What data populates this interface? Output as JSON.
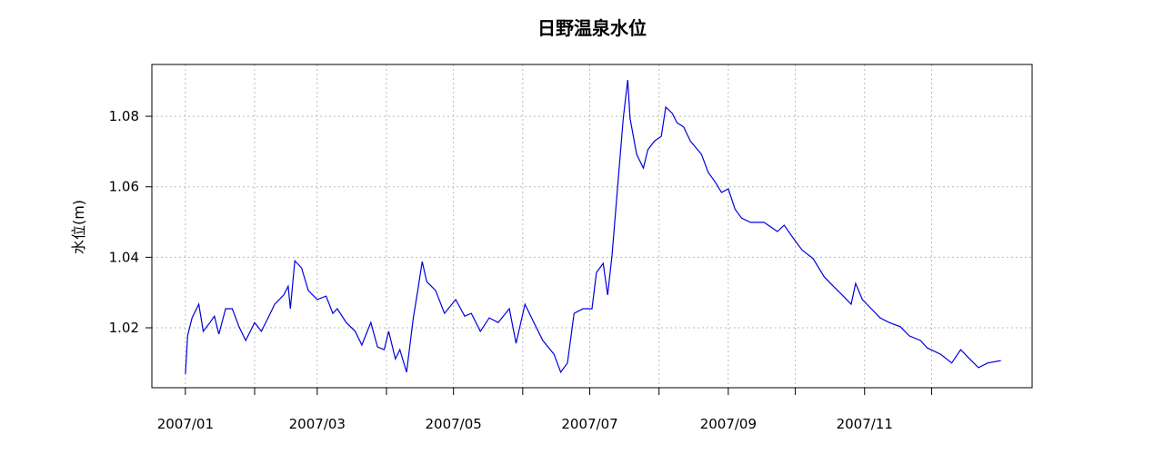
{
  "chart_data": {
    "type": "line",
    "title": "日野温泉水位",
    "y_label": "水位(m)",
    "x": [
      0,
      1,
      3,
      6,
      8,
      11,
      13,
      15,
      18,
      21,
      24,
      27,
      31,
      34,
      37,
      40,
      44,
      46,
      47,
      49,
      52,
      55,
      59,
      63,
      66,
      68,
      72,
      76,
      79,
      83,
      86,
      89,
      91,
      94,
      96,
      99,
      102,
      104,
      106,
      108,
      112,
      116,
      121,
      125,
      128,
      132,
      136,
      140,
      145,
      148,
      152,
      156,
      160,
      165,
      168,
      171,
      174,
      178,
      182,
      184,
      187,
      189,
      191,
      193,
      196,
      198,
      199,
      202,
      205,
      207,
      210,
      213,
      215,
      218,
      220,
      223,
      226,
      231,
      234,
      237,
      240,
      243,
      246,
      249,
      253,
      259,
      265,
      268,
      272,
      276,
      281,
      286,
      290,
      294,
      298,
      300,
      303,
      307,
      311,
      315,
      320,
      324,
      329,
      332,
      338,
      343,
      347,
      351,
      355,
      359,
      365
    ],
    "series": [
      {
        "name": "水位",
        "color": "#0000dd",
        "values": [
          1.0069,
          1.0177,
          1.0228,
          1.0267,
          1.019,
          1.0215,
          1.0233,
          1.0182,
          1.0254,
          1.0254,
          1.0203,
          1.0164,
          1.0215,
          1.019,
          1.0228,
          1.0267,
          1.0293,
          1.0318,
          1.0254,
          1.039,
          1.037,
          1.0306,
          1.028,
          1.029,
          1.0241,
          1.0254,
          1.0215,
          1.019,
          1.0151,
          1.0215,
          1.0146,
          1.0138,
          1.019,
          1.0112,
          1.0138,
          1.0074,
          1.0228,
          1.0306,
          1.0388,
          1.0331,
          1.0306,
          1.0241,
          1.028,
          1.0233,
          1.0241,
          1.019,
          1.0228,
          1.0215,
          1.0254,
          1.0156,
          1.0267,
          1.0215,
          1.0164,
          1.0125,
          1.0074,
          1.01,
          1.0241,
          1.0254,
          1.0254,
          1.0357,
          1.0383,
          1.0293,
          1.0408,
          1.0563,
          1.0795,
          1.0903,
          1.0795,
          1.0692,
          1.0653,
          1.0705,
          1.073,
          1.0743,
          1.0826,
          1.0808,
          1.0782,
          1.077,
          1.073,
          1.0692,
          1.0641,
          1.0615,
          1.0584,
          1.0594,
          1.0537,
          1.0511,
          1.0499,
          1.0499,
          1.0473,
          1.0491,
          1.0455,
          1.0421,
          1.0396,
          1.0344,
          1.0318,
          1.0293,
          1.0267,
          1.0326,
          1.028,
          1.0254,
          1.0228,
          1.0215,
          1.0203,
          1.0177,
          1.0164,
          1.0143,
          1.0125,
          1.01,
          1.0138,
          1.0112,
          1.0087,
          1.01,
          1.0107
        ]
      }
    ],
    "xlim": [
      -15,
      379
    ],
    "xticks": [
      {
        "value": 0,
        "label": "2007/01"
      },
      {
        "value": 31,
        "label": null
      },
      {
        "value": 59,
        "label": "2007/03"
      },
      {
        "value": 90,
        "label": null
      },
      {
        "value": 120,
        "label": "2007/05"
      },
      {
        "value": 151,
        "label": null
      },
      {
        "value": 181,
        "label": "2007/07"
      },
      {
        "value": 212,
        "label": null
      },
      {
        "value": 243,
        "label": "2007/09"
      },
      {
        "value": 273,
        "label": null
      },
      {
        "value": 304,
        "label": "2007/11"
      },
      {
        "value": 334,
        "label": null
      }
    ],
    "ylim": [
      1.003,
      1.0947
    ],
    "yticks": [
      1.02,
      1.04,
      1.06,
      1.08
    ],
    "grid": true
  }
}
